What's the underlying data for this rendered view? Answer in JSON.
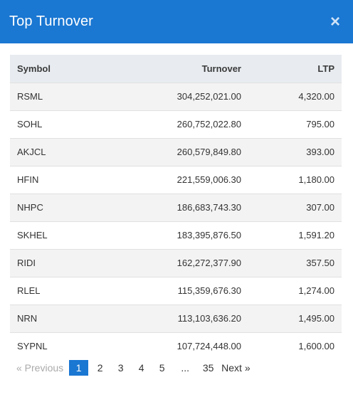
{
  "header": {
    "title": "Top Turnover",
    "close_label": "×"
  },
  "table": {
    "columns": [
      "Symbol",
      "Turnover",
      "LTP"
    ],
    "rows": [
      [
        "RSML",
        "304,252,021.00",
        "4,320.00"
      ],
      [
        "SOHL",
        "260,752,022.80",
        "795.00"
      ],
      [
        "AKJCL",
        "260,579,849.80",
        "393.00"
      ],
      [
        "HFIN",
        "221,559,006.30",
        "1,180.00"
      ],
      [
        "NHPC",
        "186,683,743.30",
        "307.00"
      ],
      [
        "SKHEL",
        "183,395,876.50",
        "1,591.20"
      ],
      [
        "RIDI",
        "162,272,377.90",
        "357.50"
      ],
      [
        "RLEL",
        "115,359,676.30",
        "1,274.00"
      ],
      [
        "NRN",
        "113,103,636.20",
        "1,495.00"
      ],
      [
        "SYPNL",
        "107,724,448.00",
        "1,600.00"
      ]
    ]
  },
  "pagination": {
    "previous_label": "«  Previous",
    "pages": [
      "1",
      "2",
      "3",
      "4",
      "5"
    ],
    "ellipsis": "...",
    "last_page": "35",
    "next_label": "Next  »",
    "active": "1"
  },
  "colors": {
    "accent": "#1a77d2",
    "header_row": "#e8ecf0",
    "stripe": "#f3f3f3"
  }
}
